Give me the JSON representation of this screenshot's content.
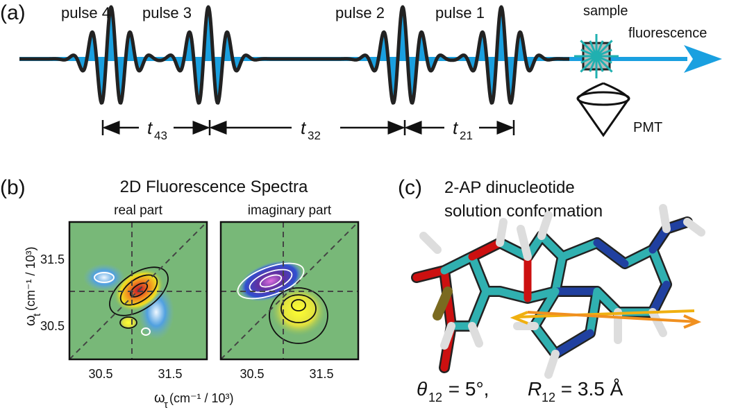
{
  "panel_a": {
    "label": "(a)",
    "pulses": [
      "pulse 4",
      "pulse 3",
      "pulse 2",
      "pulse 1"
    ],
    "sample": "sample",
    "fluorescence": "fluorescence",
    "detector": "PMT",
    "delays": [
      {
        "symbol": "t",
        "subscript": "43"
      },
      {
        "symbol": "t",
        "subscript": "32"
      },
      {
        "symbol": "t",
        "subscript": "21"
      }
    ]
  },
  "panel_b": {
    "label": "(b)",
    "title": "2D Fluorescence Spectra",
    "subtitles": [
      "real part",
      "imaginary part"
    ],
    "yticks": [
      "31.5",
      "30.5"
    ],
    "xticks": [
      "30.5",
      "31.5"
    ],
    "y_label": {
      "symbol": "ω",
      "subscript": "t",
      "unit": " (cm⁻¹ / 10³)"
    },
    "x_label": {
      "symbol": "ω",
      "subscript": "τ",
      "unit": " (cm⁻¹ / 10³)"
    }
  },
  "panel_c": {
    "label": "(c)",
    "title_lines": [
      "2-AP dinucleotide",
      "solution conformation"
    ],
    "caption": {
      "theta": "θ",
      "theta_sub": "12",
      "theta_val": " = 5°, ",
      "r": "R",
      "r_sub": "12",
      "r_val": " = 3.5 Å"
    }
  }
}
